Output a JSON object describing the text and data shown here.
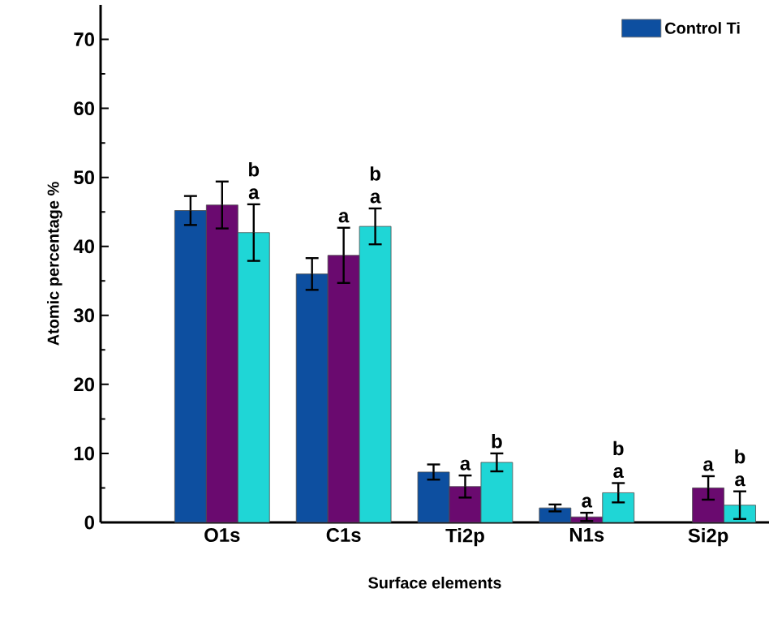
{
  "chart_data": {
    "type": "bar",
    "xlabel": "Surface elements",
    "ylabel": "Atomic percentage %",
    "categories": [
      "O1s",
      "C1s",
      "Ti2p",
      "N1s",
      "Si2p"
    ],
    "series": [
      {
        "name": "Control Ti",
        "color": "#0d4fa0",
        "values": [
          45.2,
          36.0,
          7.3,
          2.1,
          null
        ],
        "errors": [
          2.1,
          2.3,
          1.1,
          0.5,
          null
        ]
      },
      {
        "color": "#6a0a6f",
        "values": [
          46.0,
          38.7,
          5.2,
          0.8,
          5.0
        ],
        "errors": [
          3.4,
          4.0,
          1.6,
          0.6,
          1.7
        ],
        "value_labels": [
          null,
          "a",
          "a",
          "a",
          "a"
        ]
      },
      {
        "color": "#1fd6d6",
        "values": [
          42.0,
          42.9,
          8.7,
          4.3,
          2.5
        ],
        "errors": [
          4.1,
          2.6,
          1.3,
          1.4,
          2.0
        ],
        "value_labels": [
          "b a",
          "b a",
          "b",
          "b a",
          "b a"
        ]
      }
    ],
    "ylim": [
      0,
      75
    ],
    "yticks": [
      0,
      10,
      20,
      30,
      40,
      50,
      60,
      70
    ],
    "grid": false,
    "legend": "top right"
  }
}
